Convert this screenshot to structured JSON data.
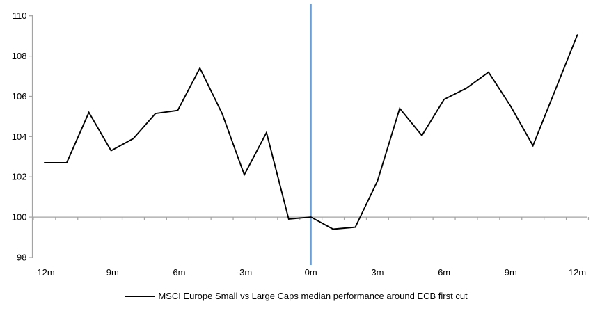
{
  "chart_data": {
    "type": "line",
    "title": "",
    "xlabel": "",
    "ylabel": "",
    "x_unit": "months relative to ECB first cut",
    "x": [
      -12,
      -11,
      -10,
      -9,
      -8,
      -7,
      -6,
      -5,
      -4,
      -3,
      -2,
      -1,
      0,
      1,
      2,
      3,
      4,
      5,
      6,
      7,
      8,
      9,
      10,
      11,
      12
    ],
    "series": [
      {
        "name": "MSCI Europe Small vs Large Caps median performance around ECB first cut",
        "color": "#000000",
        "values": [
          102.7,
          102.7,
          105.2,
          103.3,
          103.9,
          105.15,
          105.3,
          107.4,
          105.15,
          102.1,
          104.2,
          99.9,
          100.0,
          99.4,
          99.5,
          101.8,
          105.4,
          104.05,
          105.85,
          106.4,
          107.2,
          105.5,
          103.55,
          106.3,
          109.05
        ]
      }
    ],
    "ylim": [
      98,
      110
    ],
    "y_ticks": [
      98,
      100,
      102,
      104,
      106,
      108,
      110
    ],
    "x_tick_labels": [
      "-12m",
      "-9m",
      "-6m",
      "-3m",
      "0m",
      "3m",
      "6m",
      "9m",
      "12m"
    ],
    "x_tick_positions": [
      -12,
      -9,
      -6,
      -3,
      0,
      3,
      6,
      9,
      12
    ],
    "x_minor_tick_step": 1,
    "baseline_value": 100,
    "event_line_x": 0,
    "grid": "off",
    "legend_position": "bottom-center"
  },
  "legend": {
    "series_label": "MSCI Europe Small vs Large Caps median performance around ECB first cut"
  },
  "colors": {
    "series_line": "#000000",
    "axis_gray": "#a3a3a3",
    "event_line_blue": "#6a9ed6",
    "label_text": "#000000",
    "background": "#ffffff"
  }
}
